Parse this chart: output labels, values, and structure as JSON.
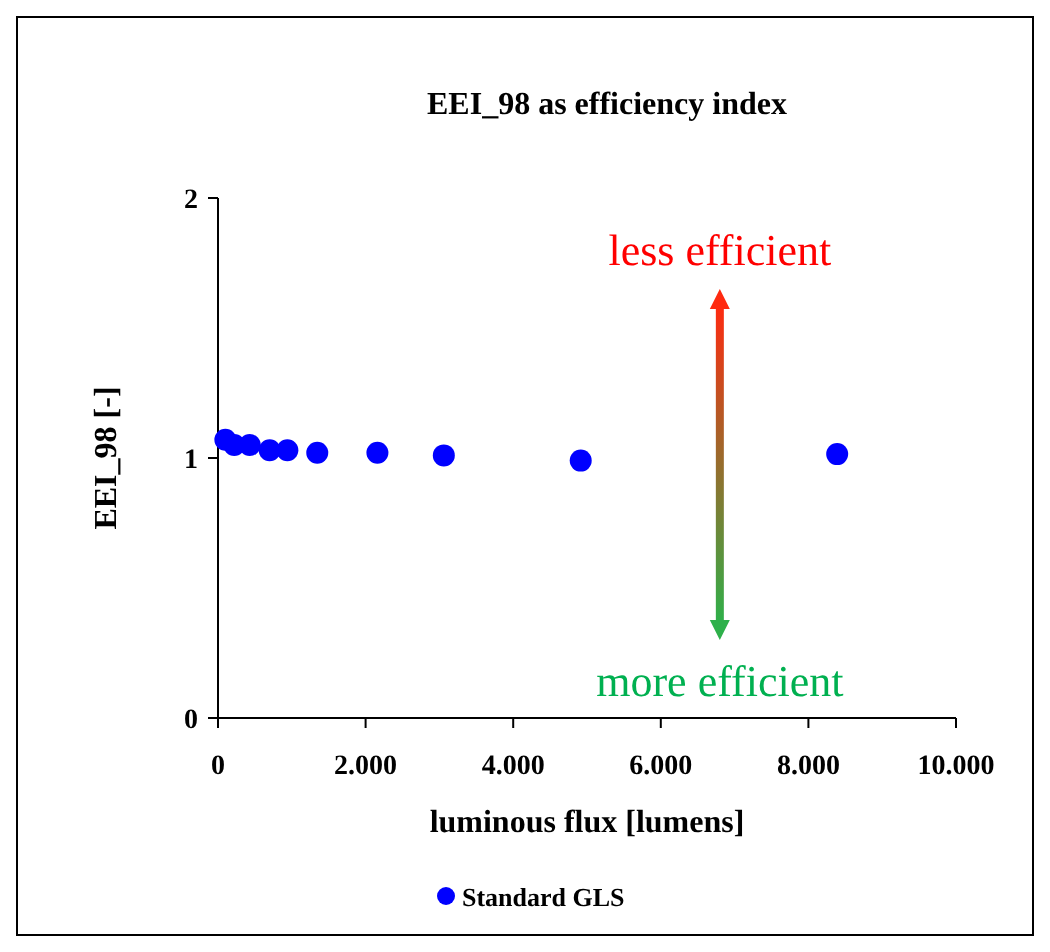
{
  "chart_data": {
    "type": "scatter",
    "title": "EEI_98 as efficiency index",
    "xlabel": "luminous flux [lumens]",
    "ylabel": "EEI_98 [-]",
    "x": [
      100,
      220,
      430,
      700,
      940,
      1345,
      2160,
      3060,
      4915,
      8390
    ],
    "series": [
      {
        "name": "Standard GLS",
        "color": "#0000ff",
        "values": [
          1.07,
          1.05,
          1.05,
          1.03,
          1.03,
          1.02,
          1.02,
          1.01,
          0.99,
          1.015
        ]
      }
    ],
    "xlim": [
      0,
      10000
    ],
    "xticks": [
      0,
      {
        "value": 2000,
        "label": "2.000"
      },
      {
        "value": 4000,
        "label": "4.000"
      },
      {
        "value": 6000,
        "label": "6.000"
      },
      {
        "value": 8000,
        "label": "8.000"
      },
      {
        "value": 10000,
        "label": "10.000"
      }
    ],
    "ylim": [
      0,
      2
    ],
    "yticks": [
      0,
      1,
      2
    ],
    "annotations": [
      "less efficient",
      "more efficient"
    ],
    "legend": "bottom",
    "marker": "circle",
    "grid": false
  }
}
